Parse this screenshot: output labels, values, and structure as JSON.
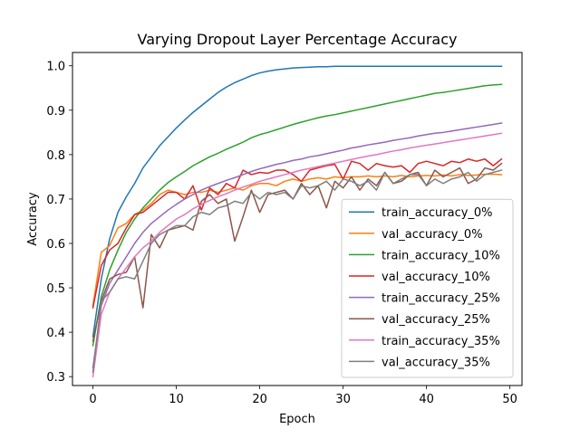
{
  "chart_data": {
    "type": "line",
    "title": "Varying Dropout Layer Percentage Accuracy",
    "xlabel": "Epoch",
    "ylabel": "Accuracy",
    "xlim": [
      -2.45,
      51.45
    ],
    "ylim": [
      0.28,
      1.03
    ],
    "xticks": [
      0,
      10,
      20,
      30,
      40,
      50
    ],
    "yticks": [
      0.3,
      0.4,
      0.5,
      0.6,
      0.7,
      0.8,
      0.9,
      1.0
    ],
    "grid": false,
    "legend_position": "lower-right",
    "x": [
      0,
      1,
      2,
      3,
      4,
      5,
      6,
      7,
      8,
      9,
      10,
      11,
      12,
      13,
      14,
      15,
      16,
      17,
      18,
      19,
      20,
      21,
      22,
      23,
      24,
      25,
      26,
      27,
      28,
      29,
      30,
      31,
      32,
      33,
      34,
      35,
      36,
      37,
      38,
      39,
      40,
      41,
      42,
      43,
      44,
      45,
      46,
      47,
      48,
      49
    ],
    "series": [
      {
        "name": "train_accuracy_0%",
        "color": "#1f77b4",
        "values": [
          0.39,
          0.52,
          0.61,
          0.67,
          0.705,
          0.735,
          0.77,
          0.795,
          0.82,
          0.84,
          0.86,
          0.878,
          0.895,
          0.91,
          0.925,
          0.94,
          0.952,
          0.962,
          0.97,
          0.978,
          0.984,
          0.988,
          0.991,
          0.993,
          0.995,
          0.996,
          0.997,
          0.998,
          0.998,
          0.999,
          0.999,
          0.999,
          0.999,
          0.999,
          0.999,
          0.999,
          0.999,
          0.999,
          0.999,
          0.999,
          0.999,
          0.999,
          0.999,
          0.999,
          0.999,
          0.999,
          0.999,
          0.999,
          0.999,
          0.999
        ]
      },
      {
        "name": "val_accuracy_0%",
        "color": "#ff7f0e",
        "values": [
          0.46,
          0.58,
          0.595,
          0.635,
          0.645,
          0.665,
          0.675,
          0.69,
          0.71,
          0.72,
          0.715,
          0.71,
          0.715,
          0.715,
          0.72,
          0.715,
          0.72,
          0.725,
          0.72,
          0.73,
          0.735,
          0.735,
          0.73,
          0.74,
          0.745,
          0.74,
          0.745,
          0.748,
          0.745,
          0.75,
          0.748,
          0.75,
          0.75,
          0.752,
          0.75,
          0.752,
          0.75,
          0.753,
          0.75,
          0.752,
          0.753,
          0.752,
          0.754,
          0.752,
          0.755,
          0.753,
          0.754,
          0.756,
          0.756,
          0.755
        ]
      },
      {
        "name": "train_accuracy_10%",
        "color": "#2ca02c",
        "values": [
          0.37,
          0.48,
          0.54,
          0.585,
          0.625,
          0.655,
          0.68,
          0.7,
          0.72,
          0.737,
          0.75,
          0.762,
          0.775,
          0.785,
          0.795,
          0.803,
          0.812,
          0.82,
          0.828,
          0.838,
          0.845,
          0.85,
          0.856,
          0.862,
          0.868,
          0.873,
          0.878,
          0.883,
          0.887,
          0.89,
          0.894,
          0.898,
          0.902,
          0.906,
          0.91,
          0.914,
          0.918,
          0.922,
          0.926,
          0.93,
          0.934,
          0.938,
          0.94,
          0.943,
          0.946,
          0.949,
          0.952,
          0.955,
          0.957,
          0.958
        ]
      },
      {
        "name": "val_accuracy_10%",
        "color": "#d62728",
        "values": [
          0.455,
          0.55,
          0.585,
          0.6,
          0.635,
          0.665,
          0.67,
          0.685,
          0.7,
          0.715,
          0.715,
          0.7,
          0.73,
          0.675,
          0.725,
          0.71,
          0.735,
          0.725,
          0.765,
          0.755,
          0.76,
          0.758,
          0.765,
          0.765,
          0.755,
          0.74,
          0.765,
          0.77,
          0.775,
          0.778,
          0.745,
          0.785,
          0.78,
          0.765,
          0.78,
          0.775,
          0.772,
          0.775,
          0.76,
          0.78,
          0.785,
          0.78,
          0.775,
          0.785,
          0.782,
          0.79,
          0.785,
          0.79,
          0.775,
          0.79
        ]
      },
      {
        "name": "train_accuracy_25%",
        "color": "#9467bd",
        "values": [
          0.32,
          0.46,
          0.51,
          0.54,
          0.57,
          0.6,
          0.625,
          0.645,
          0.66,
          0.675,
          0.688,
          0.7,
          0.71,
          0.72,
          0.728,
          0.735,
          0.742,
          0.748,
          0.755,
          0.762,
          0.768,
          0.773,
          0.778,
          0.782,
          0.787,
          0.79,
          0.795,
          0.798,
          0.802,
          0.806,
          0.81,
          0.815,
          0.818,
          0.822,
          0.825,
          0.828,
          0.832,
          0.835,
          0.838,
          0.842,
          0.845,
          0.848,
          0.85,
          0.853,
          0.856,
          0.859,
          0.862,
          0.865,
          0.868,
          0.871
        ]
      },
      {
        "name": "val_accuracy_25%",
        "color": "#8c564b",
        "values": [
          0.38,
          0.47,
          0.52,
          0.53,
          0.535,
          0.57,
          0.455,
          0.62,
          0.59,
          0.63,
          0.635,
          0.64,
          0.63,
          0.695,
          0.71,
          0.69,
          0.7,
          0.605,
          0.66,
          0.72,
          0.67,
          0.71,
          0.715,
          0.72,
          0.7,
          0.735,
          0.71,
          0.73,
          0.68,
          0.74,
          0.725,
          0.75,
          0.72,
          0.745,
          0.73,
          0.76,
          0.735,
          0.74,
          0.755,
          0.76,
          0.73,
          0.765,
          0.75,
          0.76,
          0.77,
          0.735,
          0.745,
          0.77,
          0.765,
          0.78
        ]
      },
      {
        "name": "train_accuracy_35%",
        "color": "#e377c2",
        "values": [
          0.3,
          0.44,
          0.49,
          0.52,
          0.545,
          0.57,
          0.59,
          0.605,
          0.625,
          0.64,
          0.655,
          0.665,
          0.678,
          0.688,
          0.697,
          0.705,
          0.712,
          0.72,
          0.727,
          0.733,
          0.74,
          0.745,
          0.75,
          0.755,
          0.76,
          0.765,
          0.769,
          0.773,
          0.777,
          0.781,
          0.785,
          0.789,
          0.793,
          0.797,
          0.8,
          0.804,
          0.808,
          0.811,
          0.815,
          0.818,
          0.821,
          0.824,
          0.827,
          0.83,
          0.833,
          0.836,
          0.839,
          0.842,
          0.845,
          0.848
        ]
      },
      {
        "name": "val_accuracy_35%",
        "color": "#7f7f7f",
        "values": [
          0.31,
          0.47,
          0.49,
          0.52,
          0.525,
          0.52,
          0.56,
          0.6,
          0.62,
          0.63,
          0.64,
          0.64,
          0.66,
          0.67,
          0.665,
          0.68,
          0.685,
          0.695,
          0.69,
          0.715,
          0.7,
          0.715,
          0.71,
          0.715,
          0.7,
          0.73,
          0.725,
          0.73,
          0.74,
          0.72,
          0.745,
          0.74,
          0.73,
          0.74,
          0.72,
          0.76,
          0.735,
          0.745,
          0.755,
          0.755,
          0.73,
          0.745,
          0.735,
          0.745,
          0.75,
          0.76,
          0.74,
          0.755,
          0.76,
          0.765
        ]
      }
    ]
  }
}
